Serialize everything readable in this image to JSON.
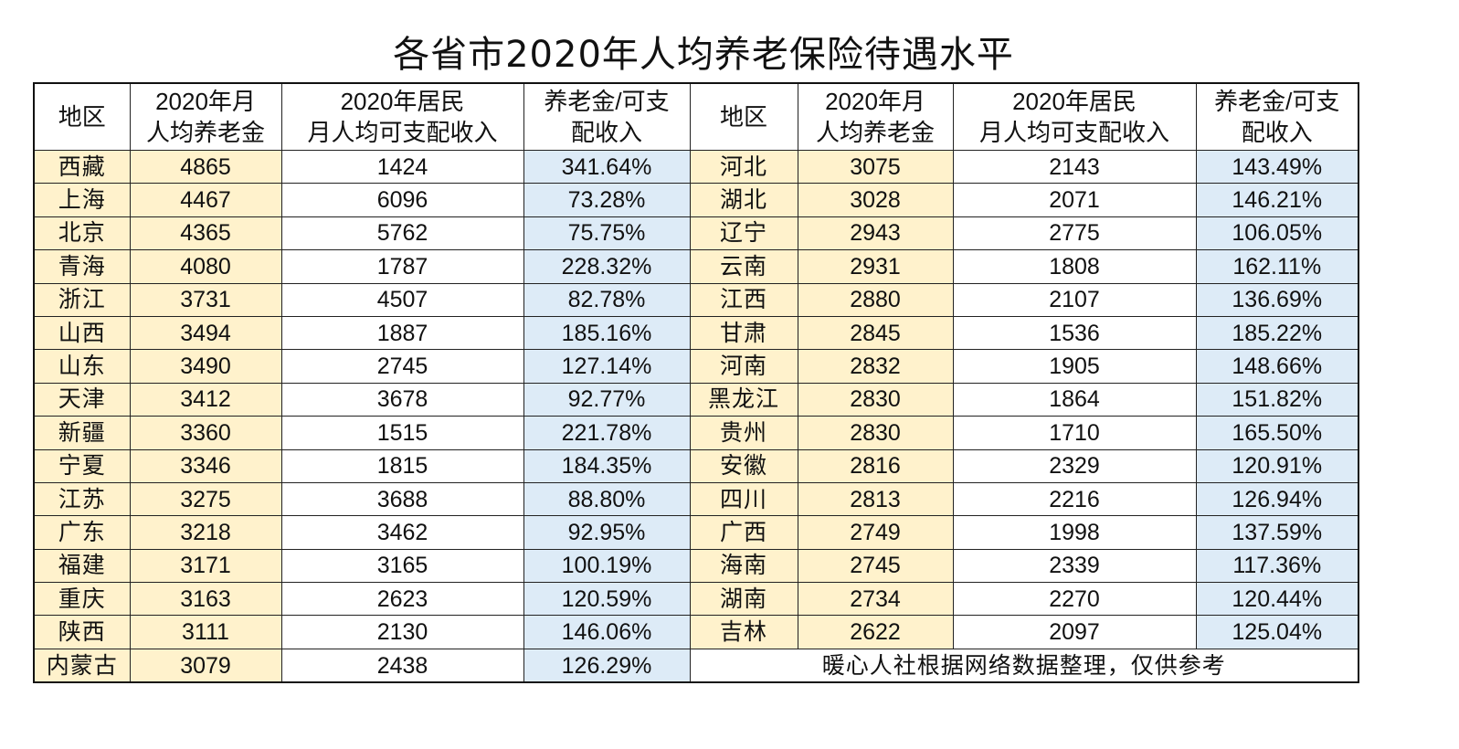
{
  "title": "各省市2020年人均养老保险待遇水平",
  "headers": {
    "region": "地区",
    "pension_line1": "2020年月",
    "pension_line2": "人均养老金",
    "income_line1": "2020年居民",
    "income_line2": "月人均可支配收入",
    "ratio_line1": "养老金/可支",
    "ratio_line2": "配收入"
  },
  "colors": {
    "region_and_pension_bg": "#FFF2CC",
    "ratio_bg": "#DDEBF7",
    "border": "#111111"
  },
  "left_rows": [
    {
      "region": "西藏",
      "pension": "4865",
      "income": "1424",
      "ratio": "341.64%"
    },
    {
      "region": "上海",
      "pension": "4467",
      "income": "6096",
      "ratio": "73.28%"
    },
    {
      "region": "北京",
      "pension": "4365",
      "income": "5762",
      "ratio": "75.75%"
    },
    {
      "region": "青海",
      "pension": "4080",
      "income": "1787",
      "ratio": "228.32%"
    },
    {
      "region": "浙江",
      "pension": "3731",
      "income": "4507",
      "ratio": "82.78%"
    },
    {
      "region": "山西",
      "pension": "3494",
      "income": "1887",
      "ratio": "185.16%"
    },
    {
      "region": "山东",
      "pension": "3490",
      "income": "2745",
      "ratio": "127.14%"
    },
    {
      "region": "天津",
      "pension": "3412",
      "income": "3678",
      "ratio": "92.77%"
    },
    {
      "region": "新疆",
      "pension": "3360",
      "income": "1515",
      "ratio": "221.78%"
    },
    {
      "region": "宁夏",
      "pension": "3346",
      "income": "1815",
      "ratio": "184.35%"
    },
    {
      "region": "江苏",
      "pension": "3275",
      "income": "3688",
      "ratio": "88.80%"
    },
    {
      "region": "广东",
      "pension": "3218",
      "income": "3462",
      "ratio": "92.95%"
    },
    {
      "region": "福建",
      "pension": "3171",
      "income": "3165",
      "ratio": "100.19%"
    },
    {
      "region": "重庆",
      "pension": "3163",
      "income": "2623",
      "ratio": "120.59%"
    },
    {
      "region": "陕西",
      "pension": "3111",
      "income": "2130",
      "ratio": "146.06%"
    },
    {
      "region": "内蒙古",
      "pension": "3079",
      "income": "2438",
      "ratio": "126.29%"
    }
  ],
  "right_rows": [
    {
      "region": "河北",
      "pension": "3075",
      "income": "2143",
      "ratio": "143.49%"
    },
    {
      "region": "湖北",
      "pension": "3028",
      "income": "2071",
      "ratio": "146.21%"
    },
    {
      "region": "辽宁",
      "pension": "2943",
      "income": "2775",
      "ratio": "106.05%"
    },
    {
      "region": "云南",
      "pension": "2931",
      "income": "1808",
      "ratio": "162.11%"
    },
    {
      "region": "江西",
      "pension": "2880",
      "income": "2107",
      "ratio": "136.69%"
    },
    {
      "region": "甘肃",
      "pension": "2845",
      "income": "1536",
      "ratio": "185.22%"
    },
    {
      "region": "河南",
      "pension": "2832",
      "income": "1905",
      "ratio": "148.66%"
    },
    {
      "region": "黑龙江",
      "pension": "2830",
      "income": "1864",
      "ratio": "151.82%"
    },
    {
      "region": "贵州",
      "pension": "2830",
      "income": "1710",
      "ratio": "165.50%"
    },
    {
      "region": "安徽",
      "pension": "2816",
      "income": "2329",
      "ratio": "120.91%"
    },
    {
      "region": "四川",
      "pension": "2813",
      "income": "2216",
      "ratio": "126.94%"
    },
    {
      "region": "广西",
      "pension": "2749",
      "income": "1998",
      "ratio": "137.59%"
    },
    {
      "region": "海南",
      "pension": "2745",
      "income": "2339",
      "ratio": "117.36%"
    },
    {
      "region": "湖南",
      "pension": "2734",
      "income": "2270",
      "ratio": "120.44%"
    },
    {
      "region": "吉林",
      "pension": "2622",
      "income": "2097",
      "ratio": "125.04%"
    }
  ],
  "footnote": "暖心人社根据网络数据整理，仅供参考"
}
